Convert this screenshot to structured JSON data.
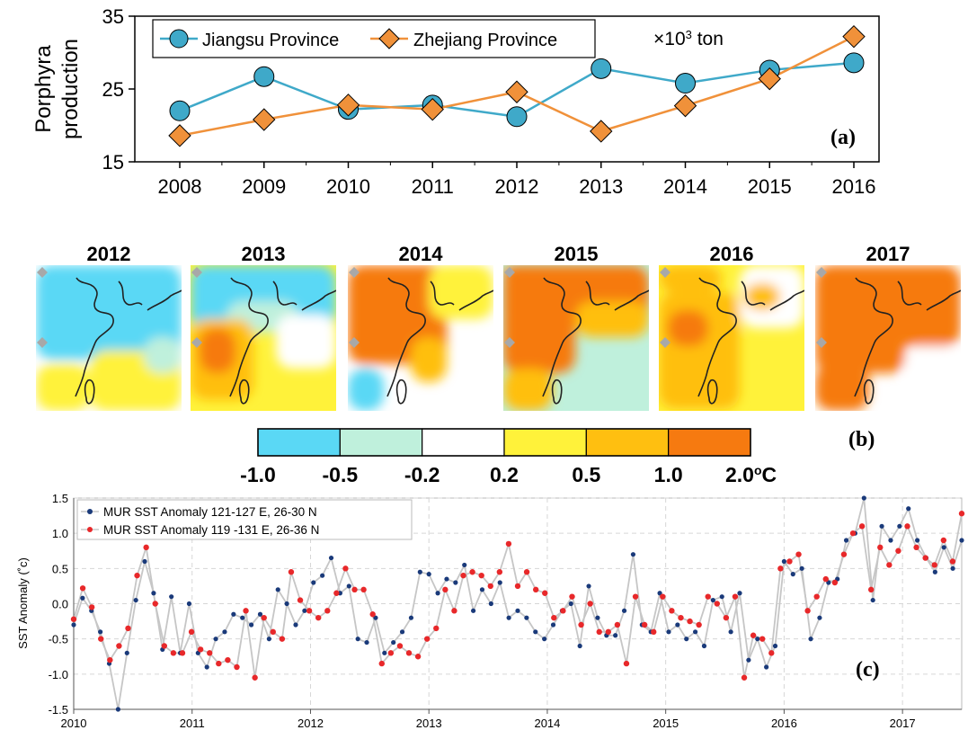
{
  "chart_data": [
    {
      "panel": "(a)",
      "type": "line",
      "ylabel": "Porphyra production",
      "unit_label_prefix": "×10",
      "unit_label_exp": "3",
      "unit_label_suffix": " ton",
      "categories": [
        "2008",
        "2009",
        "2010",
        "2011",
        "2012",
        "2013",
        "2014",
        "2015",
        "2016"
      ],
      "ylim": [
        15,
        35
      ],
      "yticks": [
        "15",
        "25",
        "35"
      ],
      "series": [
        {
          "name": "Jiangsu Province",
          "color": "#3fa9c9",
          "marker": "circle",
          "values": [
            22.0,
            26.7,
            22.2,
            22.8,
            21.2,
            27.8,
            25.8,
            27.6,
            28.6
          ]
        },
        {
          "name": "Zhejiang Province",
          "color": "#f0913a",
          "marker": "diamond",
          "values": [
            18.6,
            20.8,
            22.8,
            22.2,
            24.6,
            19.2,
            22.7,
            26.4,
            32.2
          ]
        }
      ]
    },
    {
      "panel": "(b)",
      "type": "heatmap",
      "years": [
        "2012",
        "2013",
        "2014",
        "2015",
        "2016",
        "2017"
      ],
      "colorbar": {
        "colors": [
          "#5ad8f5",
          "#bff0dc",
          "#ffffff",
          "#fff23a",
          "#ffbf10",
          "#f67a10"
        ],
        "tick_labels": [
          "-1.0",
          "-0.5",
          "-0.2",
          "0.2",
          "0.5",
          "1.0",
          "2.0"
        ],
        "unit_sup": "o",
        "unit": "C"
      }
    },
    {
      "panel": "(c)",
      "type": "line",
      "ylabel": "SST Anomaly (˚c)",
      "xlim": [
        2010,
        2017.5
      ],
      "ylim": [
        -1.5,
        1.5
      ],
      "xticks": [
        "2010",
        "2011",
        "2012",
        "2013",
        "2014",
        "2015",
        "2016",
        "2017"
      ],
      "yticks": [
        "-1.5",
        "-1.0",
        "-0.5",
        "0.0",
        "0.5",
        "1.0",
        "1.5"
      ],
      "grid": true,
      "legend": "top-left",
      "series": [
        {
          "name": "MUR SST Anomaly 121-127 E, 26-30 N",
          "color": "#1a3a7a",
          "values": [
            -0.3,
            0.08,
            -0.1,
            -0.4,
            -0.85,
            -1.5,
            -0.7,
            0.05,
            0.6,
            0.15,
            -0.65,
            0.1,
            -0.7,
            0.0,
            -0.7,
            -0.9,
            -0.5,
            -0.4,
            -0.15,
            -0.2,
            -0.3,
            -0.15,
            -0.5,
            0.2,
            0.0,
            -0.3,
            -0.1,
            0.3,
            0.4,
            0.65,
            0.15,
            0.25,
            -0.5,
            -0.55,
            -0.2,
            -0.7,
            -0.55,
            -0.4,
            -0.2,
            0.45,
            0.42,
            0.15,
            0.35,
            0.3,
            0.55,
            -0.1,
            0.2,
            0.0,
            0.3,
            -0.2,
            -0.1,
            -0.2,
            -0.4,
            -0.5,
            -0.3,
            -0.1,
            0.0,
            -0.6,
            0.25,
            -0.2,
            -0.45,
            -0.45,
            -0.1,
            0.7,
            -0.3,
            -0.4,
            0.15,
            -0.4,
            -0.3,
            -0.5,
            -0.4,
            -0.6,
            0.05,
            0.1,
            -0.4,
            0.15,
            -0.8,
            -0.5,
            -0.9,
            -0.6,
            0.6,
            0.42,
            0.5,
            -0.5,
            -0.2,
            0.3,
            0.35,
            0.9,
            1.0,
            1.5,
            0.05,
            1.1,
            0.9,
            1.1,
            1.35,
            0.9,
            0.65,
            0.45,
            0.8,
            0.5,
            0.9
          ]
        },
        {
          "name": "MUR SST Anomaly 119 -131 E, 26-36 N",
          "color": "#e8282a",
          "values": [
            -0.22,
            0.22,
            -0.05,
            -0.5,
            -0.8,
            -0.6,
            -0.35,
            0.4,
            0.8,
            0.0,
            -0.6,
            -0.7,
            -0.7,
            -0.4,
            -0.65,
            -0.7,
            -0.85,
            -0.8,
            -0.9,
            -0.1,
            -1.05,
            -0.2,
            -0.4,
            -0.5,
            0.45,
            0.05,
            -0.1,
            -0.2,
            -0.1,
            0.15,
            0.5,
            0.2,
            0.2,
            -0.15,
            -0.85,
            -0.7,
            -0.6,
            -0.7,
            -0.75,
            -0.5,
            -0.35,
            0.2,
            -0.1,
            0.4,
            0.45,
            0.4,
            0.25,
            0.45,
            0.85,
            0.25,
            0.45,
            0.2,
            0.15,
            -0.2,
            -0.1,
            0.1,
            -0.3,
            0.0,
            -0.4,
            -0.4,
            -0.3,
            -0.85,
            0.1,
            -0.3,
            -0.4,
            0.1,
            -0.1,
            -0.2,
            -0.25,
            -0.3,
            0.1,
            0.0,
            -0.2,
            0.1,
            -1.05,
            -0.45,
            -0.5,
            -0.7,
            0.5,
            0.6,
            0.7,
            -0.1,
            0.1,
            0.35,
            0.3,
            0.7,
            1.0,
            1.1,
            0.2,
            0.8,
            0.55,
            0.75,
            1.1,
            0.8,
            0.65,
            0.55,
            0.9,
            0.6,
            1.28
          ]
        }
      ]
    }
  ]
}
